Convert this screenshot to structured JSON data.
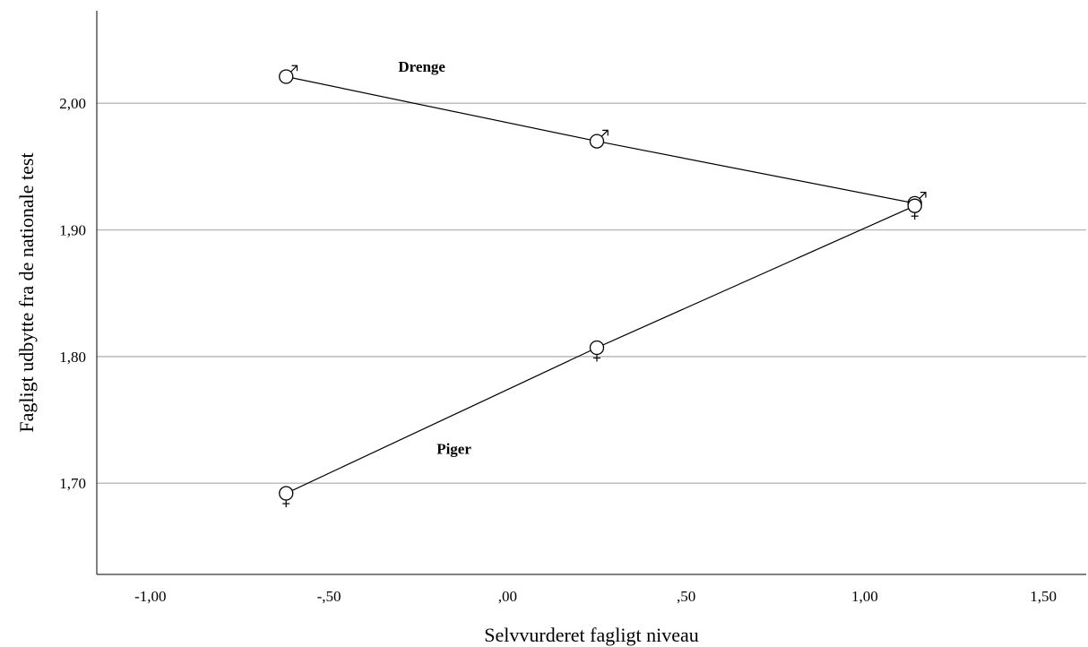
{
  "chart_data": {
    "type": "line",
    "xlabel": "Selvvurderet fagligt niveau",
    "ylabel": "Fagligt udbytte fra de nationale test",
    "xlim": [
      -1.15,
      1.62
    ],
    "ylim": [
      1.628,
      2.073
    ],
    "x_ticks": [
      -1.0,
      -0.5,
      0.0,
      0.5,
      1.0,
      1.5
    ],
    "x_tick_labels": [
      "-1,00",
      "-,50",
      ",00",
      ",50",
      "1,00",
      "1,50"
    ],
    "y_ticks": [
      1.7,
      1.8,
      1.9,
      2.0
    ],
    "y_tick_labels": [
      "1,70",
      "1,80",
      "1,90",
      "2,00"
    ],
    "grid": "horizontal",
    "series": [
      {
        "name": "Drenge",
        "marker": "male-symbol",
        "x": [
          -0.62,
          0.25,
          1.14
        ],
        "y": [
          2.021,
          1.97,
          1.921
        ]
      },
      {
        "name": "Piger",
        "marker": "female-symbol",
        "x": [
          -0.62,
          0.25,
          1.14
        ],
        "y": [
          1.692,
          1.807,
          1.919
        ]
      }
    ],
    "annotations": [
      {
        "text": "Drenge",
        "x": -0.24,
        "y": 2.025
      },
      {
        "text": "Piger",
        "x": -0.15,
        "y": 1.723
      }
    ]
  }
}
